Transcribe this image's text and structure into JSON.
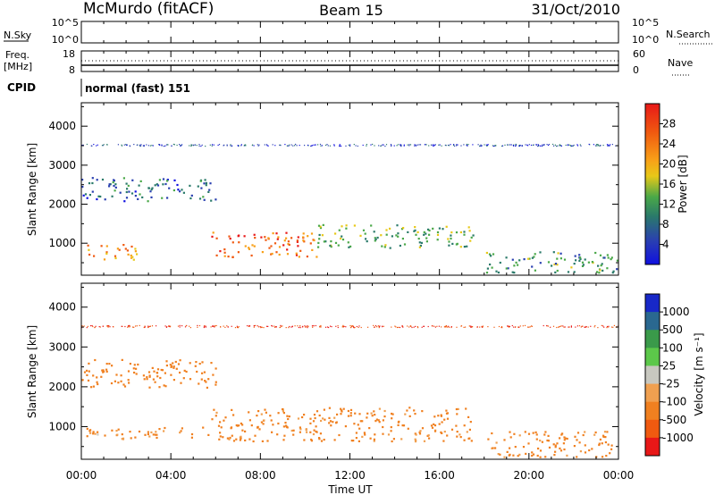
{
  "header": {
    "station": "McMurdo (fitACF)",
    "beam": "Beam 15",
    "date": "31/Oct/2010"
  },
  "noise_panel": {
    "left_label": "N.Sky",
    "right_label": "N.Search",
    "left_ticks": [
      "10^5",
      "10^0"
    ],
    "right_ticks": [
      "10^5",
      "10^0"
    ]
  },
  "freq_panel": {
    "left_label_1": "Freq.",
    "left_label_2": "[MHz]",
    "left_ticks": [
      "18",
      "8"
    ],
    "right_label": "Nave",
    "right_ticks": [
      "60",
      "0"
    ]
  },
  "cpid": {
    "label": "CPID",
    "value": "normal (fast) 151"
  },
  "time_axis": {
    "label": "Time UT",
    "ticks": [
      "00:00",
      "04:00",
      "08:00",
      "12:00",
      "16:00",
      "20:00",
      "00:00"
    ]
  },
  "power_colorbar": {
    "label": "Power [dB]",
    "ticks": [
      "28",
      "24",
      "20",
      "16",
      "12",
      "8",
      "4"
    ],
    "colors": [
      "#e81818",
      "#f05a10",
      "#f8a018",
      "#e8c818",
      "#4aa848",
      "#2a7a6a",
      "#2a40b0",
      "#1010e0"
    ]
  },
  "velocity_colorbar": {
    "label": "Velocity [m s⁻¹]",
    "ticks": [
      "1000",
      "500",
      "100",
      "25",
      "-25",
      "-100",
      "-500",
      "-1000"
    ],
    "colors": [
      "#1828c8",
      "#2a6890",
      "#3a9a4a",
      "#5cc84a",
      "#c8c8c0",
      "#f0a050",
      "#f08020",
      "#f05a10",
      "#e81818"
    ]
  },
  "chart_data": [
    {
      "type": "heatmap",
      "title": "Power",
      "xlabel": "",
      "ylabel": "Slant Range [km]",
      "x_range_hours": [
        0,
        24
      ],
      "ylim": [
        180,
        4600
      ],
      "y_ticks": [
        "4000",
        "3000",
        "2000",
        "1000"
      ],
      "colorbar_range_db": [
        0,
        32
      ],
      "echo_regions": [
        {
          "t0": 0.0,
          "t1": 6.0,
          "r0": 2100,
          "r1": 2700,
          "power": 8
        },
        {
          "t0": 0.0,
          "t1": 2.5,
          "r0": 600,
          "r1": 1000,
          "power": 22
        },
        {
          "t0": 5.8,
          "t1": 10.5,
          "r0": 650,
          "r1": 1300,
          "power": 26
        },
        {
          "t0": 10.5,
          "t1": 17.5,
          "r0": 900,
          "r1": 1500,
          "power": 14
        },
        {
          "t0": 18.0,
          "t1": 24.0,
          "r0": 250,
          "r1": 800,
          "power": 12
        },
        {
          "t0": 0.0,
          "t1": 24.0,
          "r0": 3500,
          "r1": 3550,
          "power": 6
        }
      ]
    },
    {
      "type": "heatmap",
      "title": "Velocity",
      "xlabel": "Time UT",
      "ylabel": "Slant Range [km]",
      "x_range_hours": [
        0,
        24
      ],
      "ylim": [
        180,
        4600
      ],
      "y_ticks": [
        "4000",
        "3000",
        "2000",
        "1000"
      ],
      "colorbar_range_ms": [
        -1000,
        1000
      ],
      "echo_regions": [
        {
          "t0": 0.0,
          "t1": 6.0,
          "r0": 2000,
          "r1": 2700,
          "velocity": -300
        },
        {
          "t0": 0.0,
          "t1": 5.8,
          "r0": 700,
          "r1": 1000,
          "velocity": -150
        },
        {
          "t0": 5.8,
          "t1": 17.5,
          "r0": 650,
          "r1": 1500,
          "velocity": -200
        },
        {
          "t0": 18.0,
          "t1": 24.0,
          "r0": 250,
          "r1": 900,
          "velocity": -200
        },
        {
          "t0": 0.0,
          "t1": 24.0,
          "r0": 3500,
          "r1": 3550,
          "velocity": -1000
        }
      ]
    }
  ]
}
